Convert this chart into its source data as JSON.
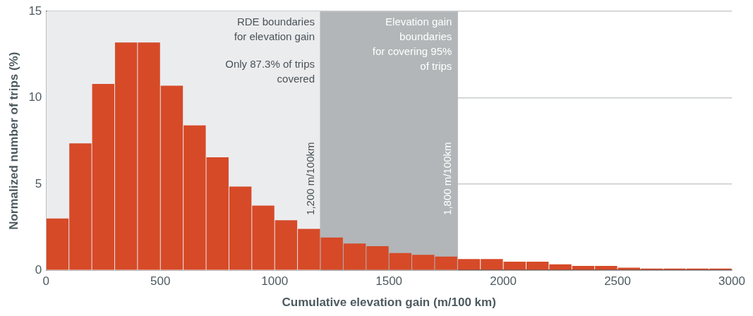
{
  "chart_data": {
    "type": "histogram",
    "xlabel": "Cumulative elevation gain (m/100 km)",
    "ylabel": "Normalized number of trips (%)",
    "bins": [
      0,
      100,
      200,
      300,
      400,
      500,
      600,
      700,
      800,
      900,
      1000,
      1100,
      1200,
      1300,
      1400,
      1500,
      1600,
      1700,
      1800,
      1900,
      2000,
      2100,
      2200,
      2300,
      2400,
      2500,
      2600,
      2700,
      2800,
      2900,
      3000
    ],
    "values": [
      3.0,
      7.35,
      10.8,
      13.2,
      13.2,
      10.7,
      8.4,
      6.55,
      4.85,
      3.75,
      2.9,
      2.4,
      1.9,
      1.55,
      1.4,
      1.0,
      0.9,
      0.8,
      0.65,
      0.65,
      0.5,
      0.5,
      0.35,
      0.25,
      0.25,
      0.15,
      0.1,
      0.1,
      0.1,
      0.1
    ],
    "color": "#d64a28",
    "xlim": [
      0,
      3000
    ],
    "xticks": [
      0,
      500,
      1000,
      1500,
      2000,
      2500,
      3000
    ],
    "ylim": [
      0,
      15
    ],
    "yticks": [
      0,
      5,
      10,
      15
    ],
    "grid": "y",
    "bands": [
      {
        "axis": "x",
        "from": 0,
        "to": 1200,
        "label": "RDE boundaries\nfor elevation gain",
        "color": "#ebecee"
      },
      {
        "axis": "x",
        "from": 1200,
        "to": 1800,
        "label": "Elevation gain\nboundaries\nfor covering 95%\nof trips",
        "color": "#b2b6b8"
      }
    ],
    "ref_lines": [
      {
        "axis": "x",
        "value": 1200,
        "label": "1,200 m/100km",
        "color": "#b2b6b8"
      },
      {
        "axis": "x",
        "value": 1800,
        "label": "1,800 m/100km",
        "color": "#b2b6b8"
      }
    ],
    "annotations": [
      "Only 87.3% of trips covered"
    ]
  }
}
